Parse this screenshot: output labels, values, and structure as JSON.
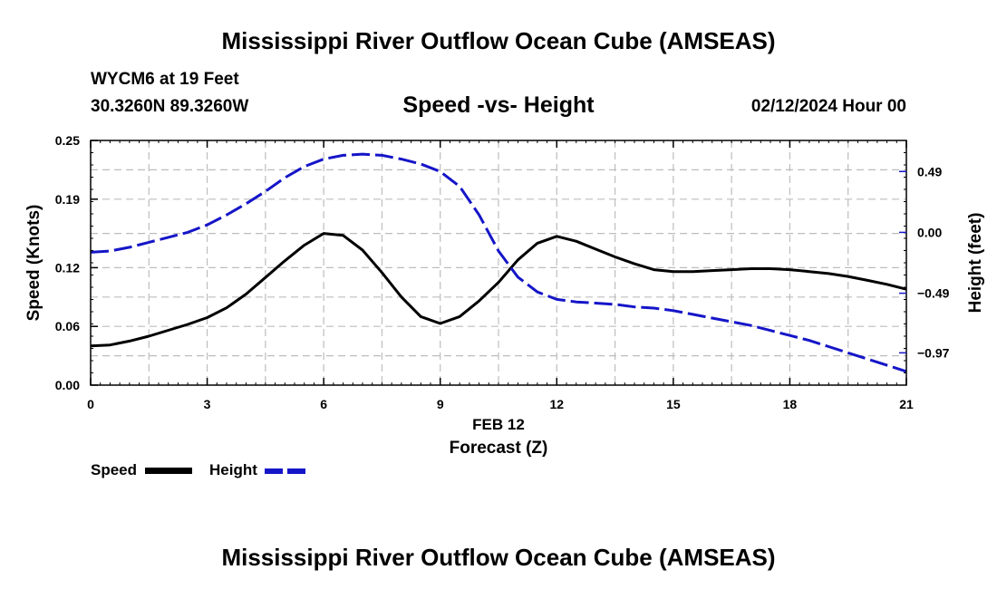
{
  "header": {
    "title": "Mississippi River Outflow Ocean Cube (AMSEAS)",
    "station": "WYCM6 at 19 Feet",
    "coords": "30.3260N  89.3260W",
    "subtitle": "Speed -vs- Height",
    "datetime": "02/12/2024 Hour 00"
  },
  "footer": {
    "title": "Mississippi River Outflow Ocean Cube (AMSEAS)"
  },
  "legend": {
    "speed_label": "Speed",
    "height_label": "Height"
  },
  "colors": {
    "speed": "#000000",
    "height": "#1515c8",
    "grid": "#bdbdbd"
  },
  "chart_data": {
    "type": "line",
    "title": "Speed -vs- Height",
    "xlabel": "Forecast (Z)",
    "xlabel_date": "FEB 12",
    "ylabel_left": "Speed (Knots)",
    "ylabel_right": "Height (feet)",
    "xlim": [
      0,
      21
    ],
    "ylim_left": [
      0,
      0.25
    ],
    "ylim_right": [
      -1.23,
      0.74
    ],
    "x_ticks": [
      0,
      3,
      6,
      9,
      12,
      15,
      18,
      21
    ],
    "x_tick_labels": [
      "0",
      "3",
      "6",
      "9",
      "12",
      "15",
      "18",
      "21"
    ],
    "y_left_ticks": [
      0.0,
      0.06,
      0.12,
      0.19,
      0.25
    ],
    "y_left_tick_labels": [
      "0.00",
      "0.06",
      "0.12",
      "0.19",
      "0.25"
    ],
    "y_right_ticks": [
      0.49,
      0.0,
      -0.49,
      -0.97
    ],
    "y_right_tick_labels": [
      "0.49",
      "0.00",
      "−0.49",
      "−0.97"
    ],
    "series": [
      {
        "name": "Speed",
        "axis": "left",
        "style": "solid",
        "x": [
          0,
          0.5,
          1,
          1.5,
          2,
          2.5,
          3,
          3.5,
          4,
          4.5,
          5,
          5.5,
          6,
          6.5,
          7,
          7.5,
          8,
          8.5,
          9,
          9.5,
          10,
          10.5,
          11,
          11.5,
          12,
          12.5,
          13,
          13.5,
          14,
          14.5,
          15,
          15.5,
          16,
          16.5,
          17,
          17.5,
          18,
          18.5,
          19,
          19.5,
          20,
          20.5,
          21
        ],
        "values": [
          0.04,
          0.041,
          0.045,
          0.05,
          0.056,
          0.062,
          0.069,
          0.079,
          0.093,
          0.11,
          0.127,
          0.143,
          0.155,
          0.153,
          0.138,
          0.115,
          0.09,
          0.07,
          0.063,
          0.07,
          0.086,
          0.105,
          0.128,
          0.145,
          0.152,
          0.147,
          0.139,
          0.131,
          0.124,
          0.118,
          0.116,
          0.116,
          0.117,
          0.118,
          0.119,
          0.119,
          0.118,
          0.116,
          0.114,
          0.111,
          0.107,
          0.103,
          0.098
        ]
      },
      {
        "name": "Height",
        "axis": "right",
        "style": "dashed",
        "x": [
          0,
          0.5,
          1,
          1.5,
          2,
          2.5,
          3,
          3.5,
          4,
          4.5,
          5,
          5.5,
          6,
          6.5,
          7,
          7.5,
          8,
          8.5,
          9,
          9.5,
          10,
          10.5,
          11,
          11.5,
          12,
          12.5,
          13,
          13.5,
          14,
          14.5,
          15,
          15.5,
          16,
          16.5,
          17,
          17.5,
          18,
          18.5,
          19,
          19.5,
          20,
          20.5,
          21
        ],
        "values": [
          -0.16,
          -0.15,
          -0.12,
          -0.08,
          -0.04,
          0.0,
          0.06,
          0.14,
          0.23,
          0.33,
          0.44,
          0.53,
          0.59,
          0.62,
          0.63,
          0.62,
          0.59,
          0.55,
          0.49,
          0.37,
          0.14,
          -0.15,
          -0.36,
          -0.48,
          -0.54,
          -0.56,
          -0.57,
          -0.58,
          -0.6,
          -0.61,
          -0.63,
          -0.66,
          -0.69,
          -0.72,
          -0.75,
          -0.79,
          -0.83,
          -0.87,
          -0.92,
          -0.97,
          -1.02,
          -1.07,
          -1.12
        ]
      }
    ]
  }
}
